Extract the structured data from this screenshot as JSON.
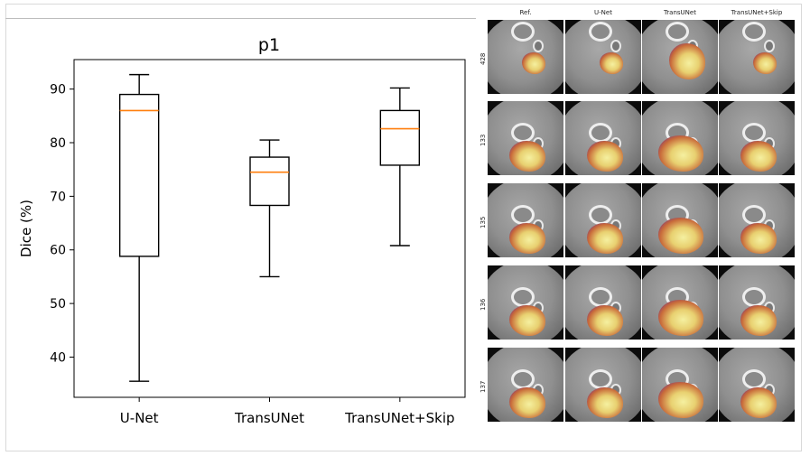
{
  "chart_data": {
    "type": "box",
    "title": "p1",
    "ylabel": "Dice (%)",
    "xlabel": "",
    "ylim": [
      32.5,
      95.5
    ],
    "yticks": [
      40,
      50,
      60,
      70,
      80,
      90
    ],
    "yticklabels": [
      "40",
      "50",
      "60",
      "70",
      "80",
      "90"
    ],
    "categories": [
      "U-Net",
      "TransUNet",
      "TransUNet+Skip"
    ],
    "boxes": [
      {
        "category": "U-Net",
        "whisker_low": 35.5,
        "q1": 58.8,
        "median": 86.0,
        "q3": 89.0,
        "whisker_high": 92.7
      },
      {
        "category": "TransUNet",
        "whisker_low": 55.0,
        "q1": 68.3,
        "median": 74.5,
        "q3": 77.3,
        "whisker_high": 80.5
      },
      {
        "category": "TransUNet+Skip",
        "whisker_low": 60.8,
        "q1": 75.8,
        "median": 82.6,
        "q3": 86.0,
        "whisker_high": 90.2
      }
    ],
    "grid": false,
    "colors": {
      "box": "#000000",
      "median": "#ff7f0e"
    }
  },
  "image_grid": {
    "columns": [
      "Ref.",
      "U-Net",
      "TransUNet",
      "TransUNet+Skip"
    ],
    "rows": [
      "428",
      "133",
      "135",
      "136",
      "137"
    ]
  }
}
